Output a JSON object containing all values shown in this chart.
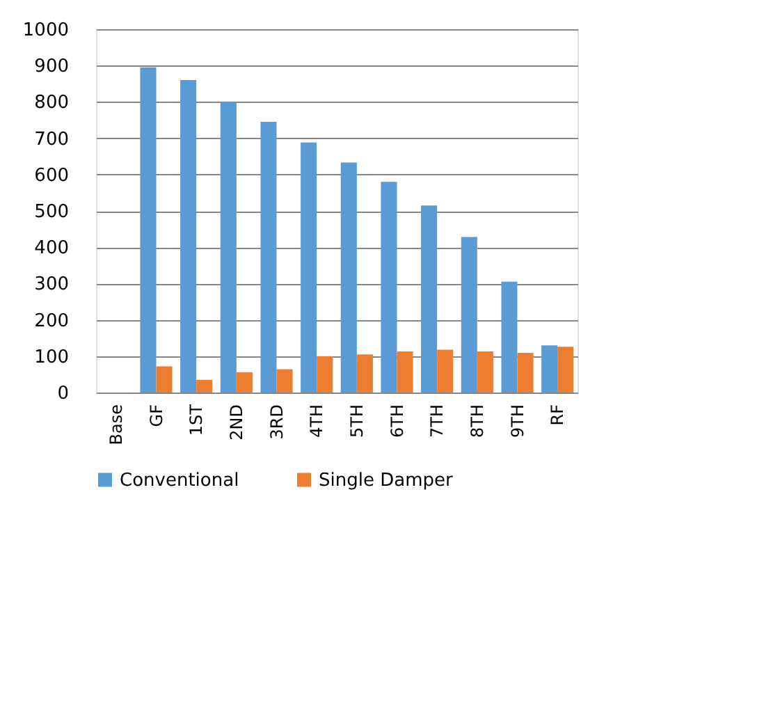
{
  "chart_data": {
    "type": "bar",
    "categories": [
      "Base",
      "GF",
      "1ST",
      "2ND",
      "3RD",
      "4TH",
      "5TH",
      "6TH",
      "7TH",
      "8TH",
      "9TH",
      "RF"
    ],
    "series": [
      {
        "name": "Conventional",
        "color": "#5b9bd5",
        "values": [
          null,
          895,
          860,
          800,
          745,
          688,
          633,
          580,
          515,
          428,
          305,
          130
        ]
      },
      {
        "name": "Single Damper",
        "color": "#ed7d31",
        "values": [
          null,
          72,
          35,
          56,
          64,
          100,
          105,
          113,
          118,
          113,
          109,
          126
        ]
      }
    ],
    "ylim": [
      0,
      1000
    ],
    "yticks": [
      0,
      100,
      200,
      300,
      400,
      500,
      600,
      700,
      800,
      900,
      1000
    ],
    "grid": "y",
    "legend": "bottom"
  }
}
